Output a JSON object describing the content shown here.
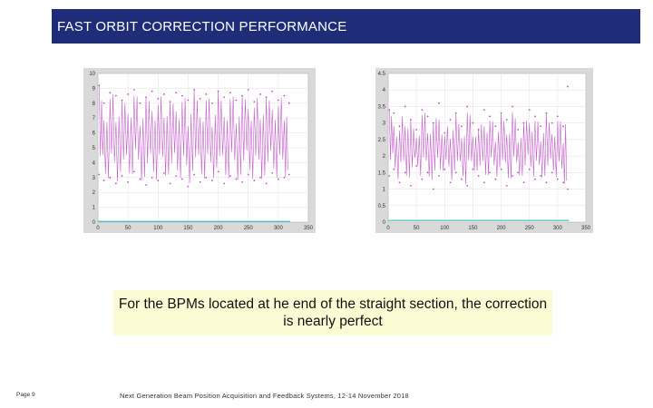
{
  "header": {
    "title": "FAST ORBIT CORRECTION PERFORMANCE"
  },
  "caption": {
    "text": "For the BPMs located at he end of the straight section, the correction is nearly perfect"
  },
  "footer": {
    "page": "Page 9",
    "text": "Next Generation Beam Position Acquisition and Feedback Systems, 12-14 November 2018"
  },
  "colors": {
    "header_bg": "#1f2d78",
    "caption_bg": "#fdfbd3",
    "series_uncorrected": "#c050c8",
    "series_corrected": "#2fb8c8"
  },
  "chart_data": [
    {
      "type": "line",
      "title": "",
      "xlabel": "",
      "ylabel": "",
      "xlim": [
        0,
        350
      ],
      "ylim": [
        0,
        10
      ],
      "xticks": [
        "0",
        "50",
        "100",
        "150",
        "200",
        "250",
        "300",
        "350"
      ],
      "yticks": [
        "0",
        "1",
        "2",
        "3",
        "4",
        "5",
        "6",
        "7",
        "8",
        "9",
        "10"
      ],
      "grid": true,
      "series": [
        {
          "name": "",
          "color": "#c050c8",
          "x": [
            2,
            10,
            20,
            30,
            40,
            50,
            60,
            70,
            80,
            90,
            100,
            110,
            120,
            130,
            140,
            150,
            160,
            170,
            180,
            190,
            200,
            210,
            220,
            230,
            240,
            250,
            260,
            270,
            280,
            290,
            300,
            310,
            318
          ],
          "y_max": [
            9.2,
            8.0,
            8.7,
            8.5,
            8.2,
            8.6,
            8.9,
            8.0,
            8.4,
            8.8,
            8.3,
            8.6,
            8.1,
            8.7,
            8.5,
            8.2,
            8.9,
            8.3,
            8.6,
            8.0,
            8.8,
            8.4,
            8.7,
            8.2,
            8.5,
            8.9,
            8.1,
            8.6,
            8.4,
            8.8,
            8.2,
            8.5,
            8.0
          ],
          "y_min": [
            3.2,
            2.8,
            3.0,
            2.6,
            3.1,
            2.7,
            3.4,
            2.9,
            2.5,
            3.0,
            2.8,
            3.3,
            2.6,
            3.1,
            2.9,
            2.4,
            3.2,
            2.7,
            3.0,
            2.8,
            3.4,
            2.6,
            3.1,
            2.9,
            2.7,
            3.2,
            2.8,
            3.0,
            2.6,
            3.3,
            2.9,
            3.0,
            3.2
          ]
        },
        {
          "name": "",
          "color": "#2fb8c8",
          "x": [
            0,
            320
          ],
          "y": [
            0.05,
            0.05
          ]
        }
      ]
    },
    {
      "type": "line",
      "title": "",
      "xlabel": "",
      "ylabel": "",
      "xlim": [
        0,
        350
      ],
      "ylim": [
        0,
        4.5
      ],
      "xticks": [
        "0",
        "50",
        "100",
        "150",
        "200",
        "250",
        "300",
        "350"
      ],
      "yticks": [
        "0",
        "0.5",
        "1",
        "1.5",
        "2",
        "2.5",
        "3",
        "3.5",
        "4",
        "4.5"
      ],
      "grid": true,
      "series": [
        {
          "name": "",
          "color": "#c050c8",
          "x": [
            2,
            10,
            20,
            30,
            40,
            50,
            60,
            70,
            80,
            90,
            100,
            110,
            120,
            130,
            140,
            150,
            160,
            170,
            180,
            190,
            200,
            210,
            220,
            230,
            240,
            250,
            260,
            270,
            280,
            290,
            300,
            310,
            318
          ],
          "y_max": [
            3.4,
            3.3,
            2.9,
            3.5,
            3.1,
            2.8,
            3.4,
            3.2,
            3.0,
            3.6,
            2.7,
            3.1,
            3.3,
            2.9,
            3.5,
            3.0,
            2.8,
            3.4,
            3.2,
            2.9,
            3.3,
            3.1,
            3.5,
            2.8,
            3.0,
            3.4,
            3.2,
            2.9,
            3.3,
            3.0,
            3.2,
            2.9,
            4.1
          ],
          "y_min": [
            1.4,
            1.6,
            1.2,
            1.5,
            1.1,
            1.7,
            1.3,
            1.5,
            1.0,
            1.4,
            1.6,
            1.2,
            1.5,
            1.3,
            1.1,
            1.6,
            1.4,
            1.2,
            1.5,
            1.3,
            1.6,
            1.1,
            1.4,
            1.5,
            1.2,
            1.6,
            1.3,
            1.4,
            1.2,
            1.5,
            1.3,
            1.2,
            1.0
          ]
        },
        {
          "name": "",
          "color": "#2fb8c8",
          "x": [
            0,
            320
          ],
          "y": [
            0.05,
            0.05
          ]
        }
      ]
    }
  ]
}
